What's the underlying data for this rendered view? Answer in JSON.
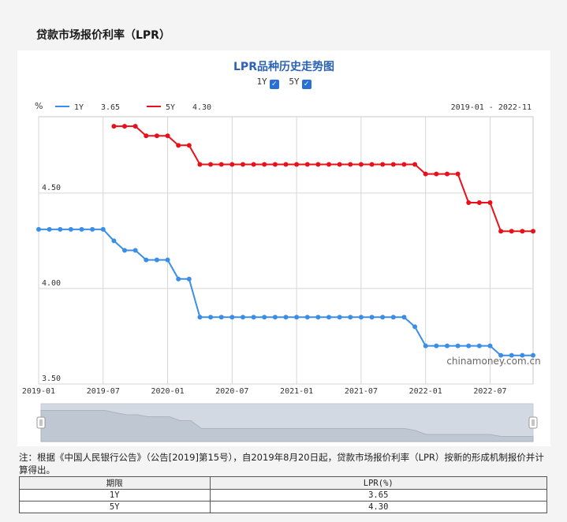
{
  "page": {
    "title": "贷款市场报价利率（LPR）"
  },
  "chart": {
    "title": "LPR品种历史走势图",
    "toggles": [
      {
        "label": "1Y",
        "checked": true
      },
      {
        "label": "5Y",
        "checked": true
      }
    ],
    "unit": "%",
    "date_range": "2019-01 - 2022-11",
    "watermark": "chinamoney.com.cn"
  },
  "chart_data": {
    "type": "line",
    "ylim": [
      3.5,
      4.9
    ],
    "yticks": [
      "4.50",
      "4.00",
      "3.50"
    ],
    "xticks": [
      "2019-01",
      "2019-07",
      "2020-01",
      "2020-07",
      "2021-01",
      "2021-07",
      "2022-01",
      "2022-07"
    ],
    "x": [
      "2019-01",
      "2019-02",
      "2019-03",
      "2019-04",
      "2019-05",
      "2019-06",
      "2019-07",
      "2019-08",
      "2019-09",
      "2019-10",
      "2019-11",
      "2019-12",
      "2020-01",
      "2020-02",
      "2020-03",
      "2020-04",
      "2020-05",
      "2020-06",
      "2020-07",
      "2020-08",
      "2020-09",
      "2020-10",
      "2020-11",
      "2020-12",
      "2021-01",
      "2021-02",
      "2021-03",
      "2021-04",
      "2021-05",
      "2021-06",
      "2021-07",
      "2021-08",
      "2021-09",
      "2021-10",
      "2021-11",
      "2021-12",
      "2022-01",
      "2022-02",
      "2022-03",
      "2022-04",
      "2022-05",
      "2022-06",
      "2022-07",
      "2022-08",
      "2022-09",
      "2022-10",
      "2022-11"
    ],
    "series": [
      {
        "name": "1Y",
        "color": "#3b8ee8",
        "latest": "3.65",
        "values": [
          4.31,
          4.31,
          4.31,
          4.31,
          4.31,
          4.31,
          4.31,
          4.25,
          4.2,
          4.2,
          4.15,
          4.15,
          4.15,
          4.05,
          4.05,
          3.85,
          3.85,
          3.85,
          3.85,
          3.85,
          3.85,
          3.85,
          3.85,
          3.85,
          3.85,
          3.85,
          3.85,
          3.85,
          3.85,
          3.85,
          3.85,
          3.85,
          3.85,
          3.85,
          3.85,
          3.8,
          3.7,
          3.7,
          3.7,
          3.7,
          3.7,
          3.7,
          3.7,
          3.65,
          3.65,
          3.65,
          3.65
        ]
      },
      {
        "name": "5Y",
        "color": "#e8101a",
        "latest": "4.30",
        "values": [
          null,
          null,
          null,
          null,
          null,
          null,
          null,
          4.85,
          4.85,
          4.85,
          4.8,
          4.8,
          4.8,
          4.75,
          4.75,
          4.65,
          4.65,
          4.65,
          4.65,
          4.65,
          4.65,
          4.65,
          4.65,
          4.65,
          4.65,
          4.65,
          4.65,
          4.65,
          4.65,
          4.65,
          4.65,
          4.65,
          4.65,
          4.65,
          4.65,
          4.65,
          4.6,
          4.6,
          4.6,
          4.6,
          4.45,
          4.45,
          4.45,
          4.3,
          4.3,
          4.3,
          4.3
        ]
      }
    ]
  },
  "note": "注：根据《中国人民银行公告》（公告[2019]第15号），自2019年8月20日起，贷款市场报价利率（LPR）按新的形成机制报价并计算得出。",
  "table": {
    "headers": [
      "期限",
      "LPR(%)"
    ],
    "rows": [
      [
        "1Y",
        "3.65"
      ],
      [
        "5Y",
        "4.30"
      ]
    ]
  }
}
